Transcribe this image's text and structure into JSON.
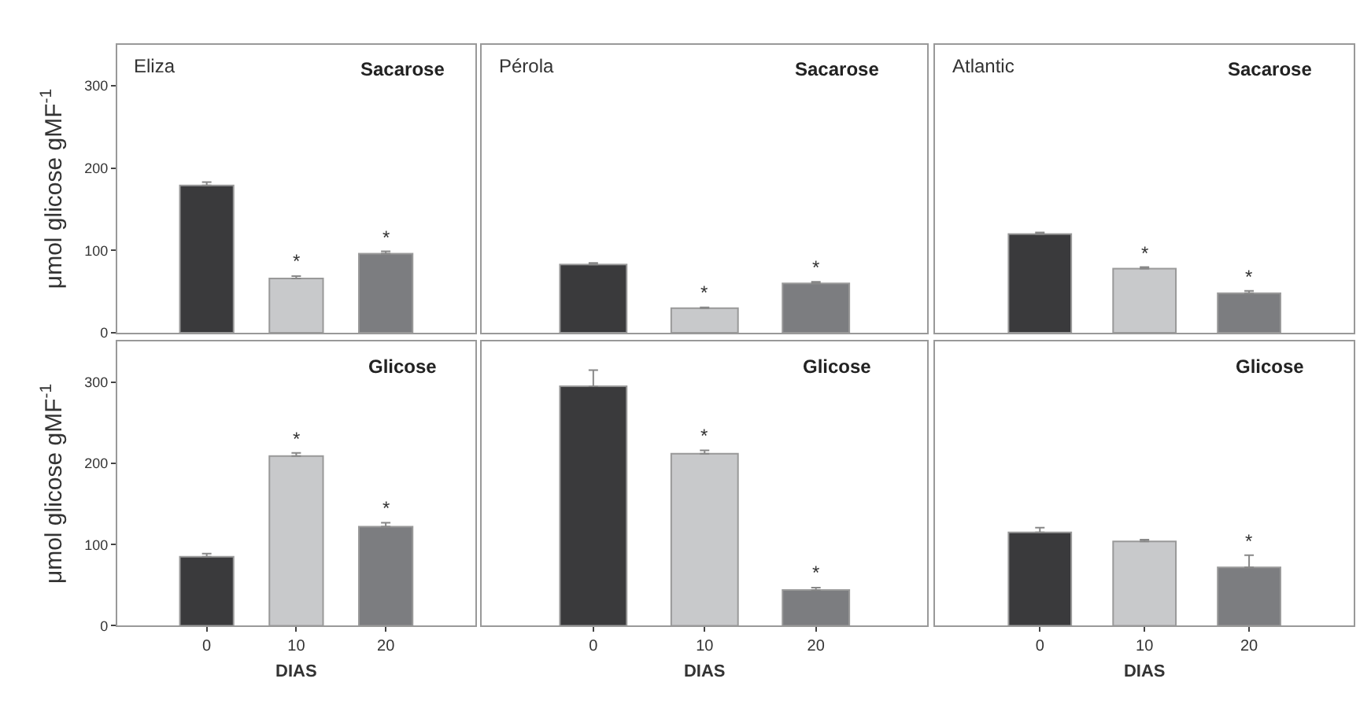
{
  "chart_data": [
    {
      "type": "bar",
      "title": "Sacarose",
      "ylabel": "μmol glicose gMF$^{-1}$",
      "categories": [
        "0",
        "10",
        "20"
      ],
      "values": [
        179,
        66,
        96
      ],
      "errors": [
        4,
        3,
        3
      ],
      "colors": [
        "#3a3a3c",
        "#c8c9cb",
        "#7c7d80"
      ],
      "ylim": [
        0,
        350
      ],
      "yticks": [
        0,
        100,
        200,
        300
      ],
      "tick_labels": "y",
      "annotations": [
        "Eliza",
        {
          "text": "*",
          "x": "10",
          "y": 69
        },
        {
          "text": "*",
          "x": "20",
          "y": 99
        }
      ]
    },
    {
      "type": "bar",
      "title": "Sacarose",
      "categories": [
        "0",
        "10",
        "20"
      ],
      "values": [
        83,
        30,
        60
      ],
      "errors": [
        2,
        1,
        2
      ],
      "colors": [
        "#3a3a3c",
        "#c8c9cb",
        "#7c7d80"
      ],
      "ylim": [
        0,
        350
      ],
      "tick_labels": false,
      "annotations": [
        "Pérola",
        {
          "text": "*",
          "x": "10",
          "y": 31
        },
        {
          "text": "*",
          "x": "20",
          "y": 62
        }
      ]
    },
    {
      "type": "bar",
      "title": "Sacarose",
      "categories": [
        "0",
        "10",
        "20"
      ],
      "values": [
        120,
        78,
        48
      ],
      "errors": [
        2,
        2,
        3
      ],
      "colors": [
        "#3a3a3c",
        "#c8c9cb",
        "#7c7d80"
      ],
      "ylim": [
        0,
        350
      ],
      "tick_labels": false,
      "annotations": [
        "Atlantic",
        {
          "text": "*",
          "x": "10",
          "y": 80
        },
        {
          "text": "*",
          "x": "20",
          "y": 51
        }
      ]
    },
    {
      "type": "bar",
      "title": "Glicose",
      "ylabel": "μmol glicose gMF$^{-1}$",
      "xlabel": "DIAS",
      "categories": [
        "0",
        "10",
        "20"
      ],
      "values": [
        85,
        209,
        122
      ],
      "errors": [
        4,
        4,
        5
      ],
      "colors": [
        "#3a3a3c",
        "#c8c9cb",
        "#7c7d80"
      ],
      "ylim": [
        0,
        350
      ],
      "yticks": [
        0,
        100,
        200,
        300
      ],
      "annotations": [
        {
          "text": "*",
          "x": "10",
          "y": 213
        },
        {
          "text": "*",
          "x": "20",
          "y": 127
        }
      ]
    },
    {
      "type": "bar",
      "title": "Glicose",
      "xlabel": "DIAS",
      "categories": [
        "0",
        "10",
        "20"
      ],
      "values": [
        295,
        212,
        44
      ],
      "errors": [
        20,
        4,
        3
      ],
      "colors": [
        "#3a3a3c",
        "#c8c9cb",
        "#7c7d80"
      ],
      "ylim": [
        0,
        350
      ],
      "tick_labels": "x",
      "annotations": [
        {
          "text": "*",
          "x": "10",
          "y": 216
        },
        {
          "text": "*",
          "x": "20",
          "y": 47
        }
      ]
    },
    {
      "type": "bar",
      "title": "Glicose",
      "xlabel": "DIAS",
      "categories": [
        "0",
        "10",
        "20"
      ],
      "values": [
        115,
        104,
        72
      ],
      "errors": [
        6,
        2,
        15
      ],
      "colors": [
        "#3a3a3c",
        "#c8c9cb",
        "#7c7d80"
      ],
      "ylim": [
        0,
        350
      ],
      "tick_labels": "x",
      "annotations": [
        {
          "text": "*",
          "x": "20",
          "y": 87
        }
      ]
    }
  ]
}
